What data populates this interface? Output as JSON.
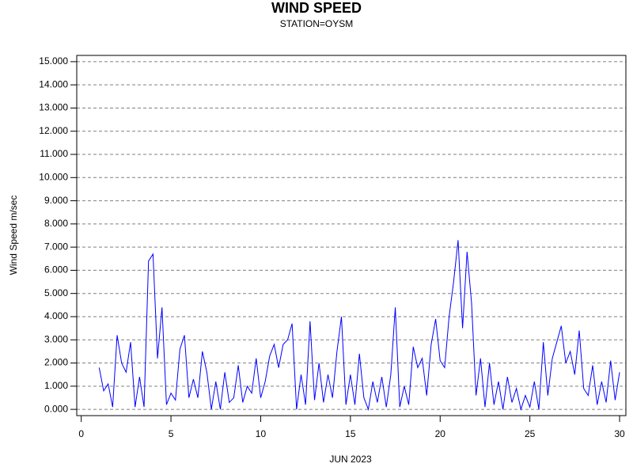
{
  "chart_data": {
    "type": "line",
    "title": "WIND SPEED",
    "subtitle": "STATION=OYSM",
    "x_label": "JUN 2023",
    "y_label": "Wind Speed m/sec",
    "x": [
      1,
      1.25,
      1.5,
      1.75,
      2,
      2.25,
      2.5,
      2.75,
      3,
      3.25,
      3.5,
      3.75,
      4,
      4.25,
      4.5,
      4.75,
      5,
      5.25,
      5.5,
      5.75,
      6,
      6.25,
      6.5,
      6.75,
      7,
      7.25,
      7.5,
      7.75,
      8,
      8.25,
      8.5,
      8.75,
      9,
      9.25,
      9.5,
      9.75,
      10,
      10.25,
      10.5,
      10.75,
      11,
      11.25,
      11.5,
      11.75,
      12,
      12.25,
      12.5,
      12.75,
      13,
      13.25,
      13.5,
      13.75,
      14,
      14.25,
      14.5,
      14.75,
      15,
      15.25,
      15.5,
      15.75,
      16,
      16.25,
      16.5,
      16.75,
      17,
      17.25,
      17.5,
      17.75,
      18,
      18.25,
      18.5,
      18.75,
      19,
      19.25,
      19.5,
      19.75,
      20,
      20.25,
      20.5,
      20.75,
      21,
      21.25,
      21.5,
      21.75,
      22,
      22.25,
      22.5,
      22.75,
      23,
      23.25,
      23.5,
      23.75,
      24,
      24.25,
      24.5,
      24.75,
      25,
      25.25,
      25.5,
      25.75,
      26,
      26.25,
      26.5,
      26.75,
      27,
      27.25,
      27.5,
      27.75,
      28,
      28.25,
      28.5,
      28.75,
      29,
      29.25,
      29.5,
      29.75,
      30
    ],
    "series": [
      {
        "name": "Wind Speed",
        "color": "#0000ff",
        "values": [
          1.8,
          0.8,
          1.1,
          0.1,
          3.2,
          2.0,
          1.6,
          2.9,
          0.1,
          1.4,
          0.1,
          6.4,
          6.7,
          2.2,
          4.4,
          0.2,
          0.7,
          0.4,
          2.6,
          3.2,
          0.5,
          1.3,
          0.5,
          2.5,
          1.6,
          0.0,
          1.2,
          0.0,
          1.6,
          0.3,
          0.5,
          1.9,
          0.3,
          1.0,
          0.7,
          2.2,
          0.5,
          1.2,
          2.3,
          2.8,
          1.8,
          2.8,
          3.0,
          3.7,
          0.0,
          1.5,
          0.2,
          3.8,
          0.4,
          2.0,
          0.3,
          1.5,
          0.5,
          2.5,
          4.0,
          0.2,
          1.5,
          0.2,
          2.4,
          0.5,
          0.0,
          1.2,
          0.3,
          1.4,
          0.1,
          1.5,
          4.4,
          0.1,
          1.0,
          0.2,
          2.7,
          1.8,
          2.2,
          0.6,
          2.8,
          3.9,
          2.1,
          1.8,
          4.0,
          5.5,
          7.3,
          3.5,
          6.8,
          4.6,
          0.6,
          2.2,
          0.1,
          2.0,
          0.2,
          1.2,
          0.0,
          1.4,
          0.3,
          0.9,
          0.0,
          0.6,
          0.1,
          1.2,
          0.0,
          2.9,
          0.6,
          2.2,
          2.9,
          3.6,
          2.0,
          2.5,
          1.5,
          3.4,
          0.9,
          0.6,
          1.9,
          0.2,
          1.2,
          0.3,
          2.1,
          0.4,
          1.6
        ]
      }
    ],
    "xlim": [
      -0.25,
      30.35
    ],
    "xticks": [
      0,
      5,
      10,
      15,
      20,
      25,
      30
    ],
    "ylim": [
      -0.27,
      15.27
    ],
    "yticks": [
      {
        "value": 0,
        "label": "0.000"
      },
      {
        "value": 1,
        "label": "1.000"
      },
      {
        "value": 2,
        "label": "2.000"
      },
      {
        "value": 3,
        "label": "3.000"
      },
      {
        "value": 4,
        "label": "4.000"
      },
      {
        "value": 5,
        "label": "5.000"
      },
      {
        "value": 6,
        "label": "6.000"
      },
      {
        "value": 7,
        "label": "7.000"
      },
      {
        "value": 8,
        "label": "8.000"
      },
      {
        "value": 9,
        "label": "9.000"
      },
      {
        "value": 10,
        "label": "10.000"
      },
      {
        "value": 11,
        "label": "11.000"
      },
      {
        "value": 12,
        "label": "12.000"
      },
      {
        "value": 13,
        "label": "13.000"
      },
      {
        "value": 14,
        "label": "14.000"
      },
      {
        "value": 15,
        "label": "15.000"
      }
    ],
    "grid": true
  }
}
